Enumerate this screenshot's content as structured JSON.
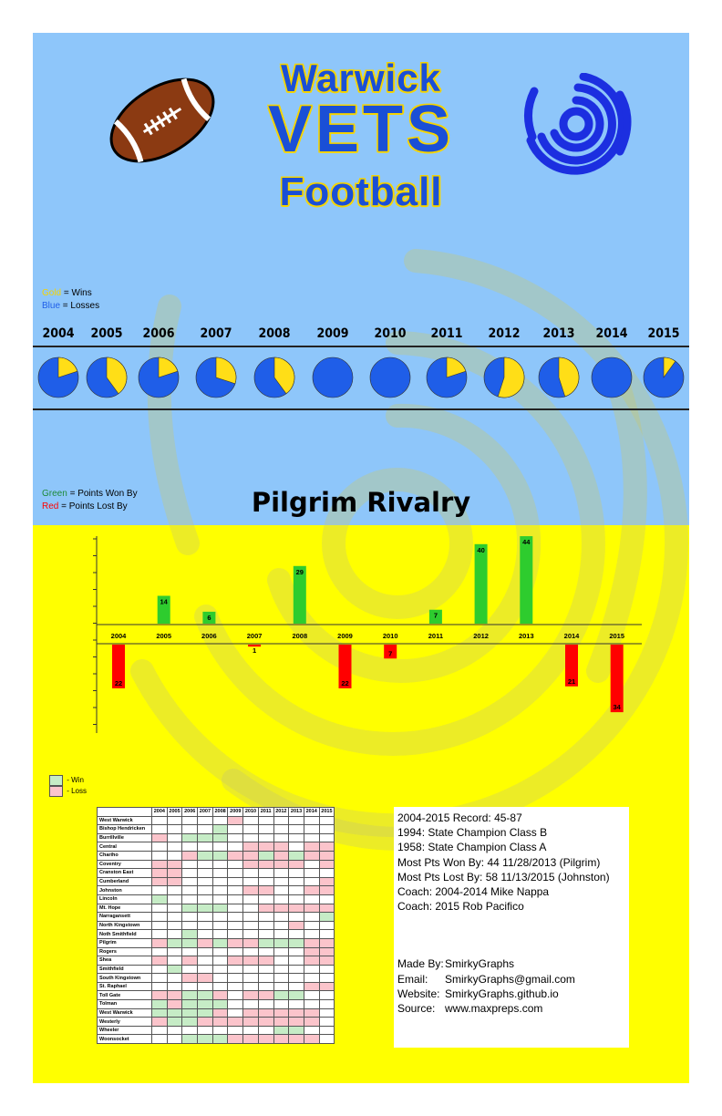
{
  "header": {
    "title_line1": "Warwick",
    "title_line2": "VETS",
    "title_line3": "Football"
  },
  "icons": {
    "left": "football-icon",
    "right": "vets-swirl-logo"
  },
  "colors": {
    "top_background": "#8ec6fa",
    "bottom_background": "#ffff00",
    "title_blue": "#1a4fd6",
    "title_gold": "#f5d400",
    "win_gold": "#ffde17",
    "loss_blue": "#1f5ee8",
    "points_won": "#2ecc2e",
    "points_lost": "#ff0000",
    "grid_win": "#c6ecc6",
    "grid_loss": "#fbc4cb"
  },
  "pie_legend": {
    "gold_word": "Gold",
    "gold_rest": " = Wins",
    "blue_word": "Blue",
    "blue_rest": " = Losses"
  },
  "rivalry_legend": {
    "green_word": "Green",
    "green_rest": " = Points Won By",
    "red_word": "Red",
    "red_rest": " = Points Lost By"
  },
  "chart_data": [
    {
      "type": "pie",
      "title": "",
      "description_labels": {
        "wins": "Wins",
        "losses": "Losses"
      },
      "categories": [
        "2004",
        "2005",
        "2006",
        "2007",
        "2008",
        "2009",
        "2010",
        "2011",
        "2012",
        "2013",
        "2014",
        "2015"
      ],
      "win_fraction": [
        0.2,
        0.4,
        0.2,
        0.3,
        0.4,
        0.0,
        0.0,
        0.2,
        0.55,
        0.45,
        0.0,
        0.1
      ]
    },
    {
      "type": "bar",
      "title": "Pilgrim Rivalry",
      "categories": [
        "2004",
        "2005",
        "2006",
        "2007",
        "2008",
        "2009",
        "2010",
        "2011",
        "2012",
        "2013",
        "2014",
        "2015"
      ],
      "values": [
        -22,
        14,
        6,
        -1,
        29,
        -22,
        -7,
        7,
        40,
        44,
        -21,
        -34
      ],
      "value_labels": [
        "22",
        "14",
        "6",
        "1",
        "29",
        "22",
        "7",
        "7",
        "40",
        "44",
        "21",
        "34"
      ],
      "xlabel": "",
      "ylabel": "",
      "ylim": [
        -40,
        50
      ]
    },
    {
      "type": "table",
      "title": "",
      "legend": {
        "win": " - Win",
        "loss": " - Loss"
      },
      "years": [
        "2004",
        "2005",
        "2006",
        "2007",
        "2008",
        "2009",
        "2010",
        "2011",
        "2012",
        "2013",
        "2014",
        "2015"
      ],
      "rows": [
        {
          "team": "West Warwick",
          "r": "NNNNNLNNNNNN"
        },
        {
          "team": "Bishop Hendricken",
          "r": "NNNNWNNNNNNN"
        },
        {
          "team": "Burrillville",
          "r": "LNWWWNNNNNNN"
        },
        {
          "team": "Central",
          "r": "NNNNNNLLLNLL"
        },
        {
          "team": "Chariho",
          "r": "NNLWWLLWLWLL"
        },
        {
          "team": "Coventry",
          "r": "LLNNNNLLLLNL"
        },
        {
          "team": "Cranston East",
          "r": "LLNNNNNNNNNN"
        },
        {
          "team": "Cumberland",
          "r": "LLNNNNNNNNNL"
        },
        {
          "team": "Johnston",
          "r": "NNNNNNLLNNLL"
        },
        {
          "team": "Lincoln",
          "r": "WNNNNNNNNNNN"
        },
        {
          "team": "Mt. Hope",
          "r": "NNWWWNNLLLLL"
        },
        {
          "team": "Narragansett",
          "r": "NNNNNNNNNNNW"
        },
        {
          "team": "North Kingstown",
          "r": "NNNNNNNNNLNN"
        },
        {
          "team": "Noth Smithfield",
          "r": "NNWNNNNNNNNN"
        },
        {
          "team": "Pilgrim",
          "r": "LWWLWLLWWWLL"
        },
        {
          "team": "Rogers",
          "r": "NNNNNNNNNNLL"
        },
        {
          "team": "Shea",
          "r": "LNLNNLLLNNLL"
        },
        {
          "team": "Smithfield",
          "r": "NWNNNNNNNNNN"
        },
        {
          "team": "South Kingstown",
          "r": "NNLLNNNNNNNN"
        },
        {
          "team": "St. Raphael",
          "r": "NNNNNNNNNNLL"
        },
        {
          "team": "Toll Gate",
          "r": "LLWWLNLLWWNN"
        },
        {
          "team": "Tolman",
          "r": "WLWWWNNNNNNN"
        },
        {
          "team": "West Warwick",
          "r": "WWWWLNLLLLLN"
        },
        {
          "team": "Westerly",
          "r": "LWWLLLLLLLLN"
        },
        {
          "team": "Wheeler",
          "r": "NNNNNNNNWWNN"
        },
        {
          "team": "Woonsocket",
          "r": "NNWWWLLLLLLN"
        }
      ]
    }
  ],
  "info_box": {
    "stats": [
      "2004-2015 Record: 45-87",
      "1994: State Champion Class B",
      "1958: State Champion Class A",
      "Most Pts Won By: 44 11/28/2013 (Pilgrim)",
      "Most Pts Lost By: 58 11/13/2015 (Johnston)",
      "Coach: 2004-2014 Mike Nappa",
      "Coach: 2015 Rob Pacifico"
    ],
    "credits": [
      {
        "label": "Made By:",
        "value": "SmirkyGraphs"
      },
      {
        "label": "Email:",
        "value": "SmirkyGraphs@gmail.com"
      },
      {
        "label": "Website:",
        "value": "SmirkyGraphs.github.io"
      },
      {
        "label": "Source:",
        "value": "www.maxpreps.com"
      }
    ]
  }
}
